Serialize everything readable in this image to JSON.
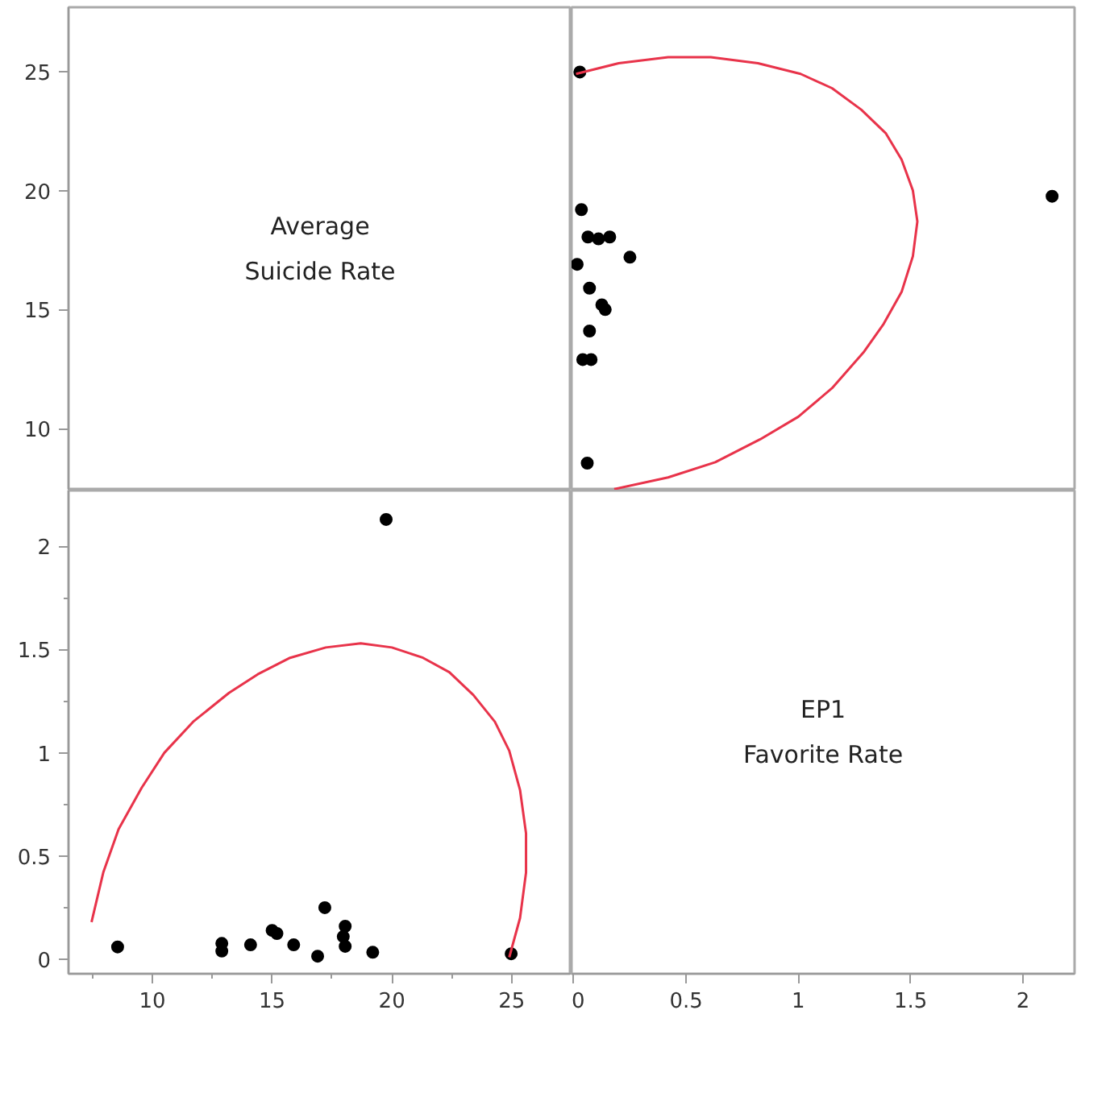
{
  "chart_data": [
    {
      "type": "scatter",
      "annotations": [
        "Average",
        "Suicide Rate"
      ],
      "xlim": [
        6.5,
        27.5
      ],
      "ylim": [
        7.4,
        27.7
      ],
      "yticks": [
        10,
        15,
        20,
        25
      ],
      "tick_labels": "y"
    },
    {
      "type": "scatter",
      "xlim": [
        -0.01,
        2.23
      ],
      "ylim": [
        7.4,
        27.7
      ],
      "xticks": [
        0,
        0.5,
        1,
        1.5,
        2
      ],
      "yticks": [
        10,
        15,
        20,
        25
      ],
      "tick_labels": false,
      "grid": false,
      "series": [
        {
          "type": "scatter",
          "marker": "circle",
          "color": "#000000",
          "x": [
            0.06,
            2.13,
            0.077,
            0.04,
            0.07,
            0.14,
            0.125,
            0.07,
            0.015,
            0.25,
            0.16,
            0.11,
            0.063,
            0.034,
            0.027
          ],
          "values": [
            8.55,
            19.76,
            12.9,
            12.9,
            14.1,
            15.0,
            15.2,
            15.9,
            16.9,
            17.2,
            18.05,
            17.97,
            18.05,
            19.2,
            24.98
          ]
        },
        {
          "type": "line",
          "color": "#e8334a",
          "x": [
            0.18,
            0.42,
            0.63,
            0.83,
            1.0,
            1.15,
            1.29,
            1.38,
            1.46,
            1.51,
            1.53,
            1.51,
            1.46,
            1.39,
            1.28,
            1.15,
            1.01,
            0.82,
            0.61,
            0.42,
            0.2,
            0.01
          ],
          "values": [
            7.46,
            7.95,
            8.59,
            9.55,
            10.5,
            11.7,
            13.2,
            14.4,
            15.75,
            17.24,
            18.7,
            20.0,
            21.3,
            22.4,
            23.4,
            24.3,
            24.9,
            25.35,
            25.6,
            25.6,
            25.35,
            24.9
          ]
        }
      ]
    },
    {
      "type": "scatter",
      "xlim": [
        6.5,
        27.5
      ],
      "ylim": [
        -0.07,
        2.27
      ],
      "xticks": [
        {
          "value": 7.5,
          "label": null
        },
        10,
        {
          "value": 12.5,
          "label": null
        },
        15,
        {
          "value": 17.5,
          "label": null
        },
        20,
        {
          "value": 22.5,
          "label": null
        },
        25
      ],
      "yticks": [
        0,
        {
          "value": 0.25,
          "label": null
        },
        0.5,
        {
          "value": 0.75,
          "label": null
        },
        1,
        {
          "value": 1.25,
          "label": null
        },
        1.5,
        {
          "value": 1.75,
          "label": null
        },
        2
      ],
      "grid": false,
      "series": [
        {
          "type": "scatter",
          "marker": "circle",
          "color": "#000000",
          "x": [
            8.55,
            19.76,
            12.9,
            12.9,
            14.1,
            15.0,
            15.2,
            15.9,
            16.9,
            17.2,
            18.05,
            17.97,
            18.05,
            19.2,
            24.98
          ],
          "values": [
            0.06,
            2.13,
            0.077,
            0.04,
            0.07,
            0.14,
            0.125,
            0.07,
            0.015,
            0.25,
            0.16,
            0.11,
            0.063,
            0.034,
            0.027
          ]
        },
        {
          "type": "line",
          "color": "#e8334a",
          "x": [
            7.46,
            7.95,
            8.59,
            9.55,
            10.5,
            11.7,
            13.2,
            14.4,
            15.75,
            17.24,
            18.7,
            20.0,
            21.3,
            22.4,
            23.4,
            24.3,
            24.9,
            25.35,
            25.6,
            25.6,
            25.35,
            24.9
          ],
          "values": [
            0.18,
            0.42,
            0.63,
            0.83,
            1.0,
            1.15,
            1.29,
            1.38,
            1.46,
            1.51,
            1.53,
            1.51,
            1.46,
            1.39,
            1.28,
            1.15,
            1.01,
            0.82,
            0.61,
            0.42,
            0.2,
            0.01
          ]
        }
      ]
    },
    {
      "type": "scatter",
      "annotations": [
        "EP1",
        "Favorite Rate"
      ],
      "xlim": [
        -0.01,
        2.23
      ],
      "ylim": [
        -0.07,
        2.27
      ],
      "xticks": [
        0,
        0.5,
        1,
        1.5,
        2
      ],
      "tick_labels": "x"
    }
  ]
}
